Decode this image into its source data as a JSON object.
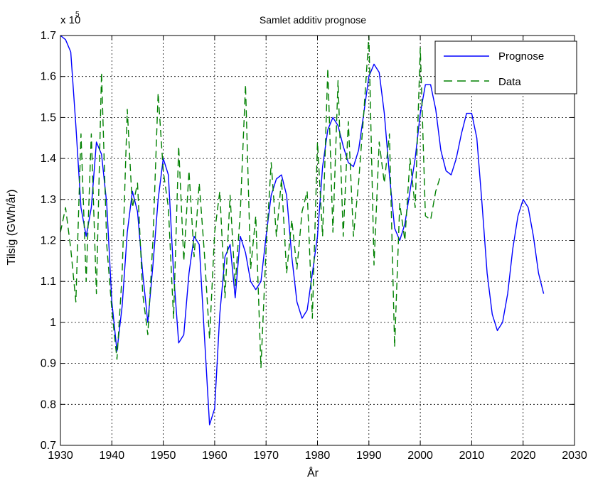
{
  "chart_data": {
    "type": "line",
    "title": "Samlet additiv prognose",
    "xlabel": "År",
    "ylabel": "Tilsig (GWh/år)",
    "y_multiplier": {
      "base": "x 10",
      "exponent": "5"
    },
    "xlim": [
      1930,
      2030
    ],
    "ylim": [
      0.7,
      1.7
    ],
    "xticks": [
      1930,
      1940,
      1950,
      1960,
      1970,
      1980,
      1990,
      2000,
      2010,
      2020,
      2030
    ],
    "yticks": [
      0.7,
      0.8,
      0.9,
      1,
      1.1,
      1.2,
      1.3,
      1.4,
      1.5,
      1.6,
      1.7
    ],
    "xtick_labels": [
      "1930",
      "1940",
      "1950",
      "1960",
      "1970",
      "1980",
      "1990",
      "2000",
      "2010",
      "2020",
      "2030"
    ],
    "ytick_labels": [
      "0.7",
      "0.8",
      "0.9",
      "1",
      "1.1",
      "1.2",
      "1.3",
      "1.4",
      "1.5",
      "1.6",
      "1.7"
    ],
    "grid": true,
    "legend_position": "top-right",
    "series": [
      {
        "name": "Prognose",
        "color": "#0000ff",
        "style": "solid",
        "points": [
          [
            1930,
            1.7
          ],
          [
            1931,
            1.69
          ],
          [
            1932,
            1.66
          ],
          [
            1933,
            1.48
          ],
          [
            1934,
            1.28
          ],
          [
            1935,
            1.21
          ],
          [
            1936,
            1.28
          ],
          [
            1937,
            1.44
          ],
          [
            1938,
            1.41
          ],
          [
            1939,
            1.29
          ],
          [
            1940,
            1.05
          ],
          [
            1941,
            0.93
          ],
          [
            1942,
            1.04
          ],
          [
            1943,
            1.22
          ],
          [
            1944,
            1.32
          ],
          [
            1945,
            1.27
          ],
          [
            1946,
            1.12
          ],
          [
            1947,
            1.0
          ],
          [
            1948,
            1.14
          ],
          [
            1949,
            1.3
          ],
          [
            1950,
            1.4
          ],
          [
            1951,
            1.36
          ],
          [
            1952,
            1.12
          ],
          [
            1953,
            0.95
          ],
          [
            1954,
            0.97
          ],
          [
            1955,
            1.12
          ],
          [
            1956,
            1.21
          ],
          [
            1957,
            1.19
          ],
          [
            1958,
            0.97
          ],
          [
            1959,
            0.75
          ],
          [
            1960,
            0.79
          ],
          [
            1961,
            1.02
          ],
          [
            1962,
            1.16
          ],
          [
            1963,
            1.19
          ],
          [
            1964,
            1.06
          ],
          [
            1965,
            1.21
          ],
          [
            1966,
            1.17
          ],
          [
            1967,
            1.1
          ],
          [
            1968,
            1.08
          ],
          [
            1969,
            1.1
          ],
          [
            1970,
            1.21
          ],
          [
            1971,
            1.31
          ],
          [
            1972,
            1.35
          ],
          [
            1973,
            1.36
          ],
          [
            1974,
            1.31
          ],
          [
            1975,
            1.16
          ],
          [
            1976,
            1.05
          ],
          [
            1977,
            1.01
          ],
          [
            1978,
            1.03
          ],
          [
            1979,
            1.12
          ],
          [
            1980,
            1.21
          ],
          [
            1981,
            1.38
          ],
          [
            1982,
            1.47
          ],
          [
            1983,
            1.5
          ],
          [
            1984,
            1.48
          ],
          [
            1985,
            1.43
          ],
          [
            1986,
            1.39
          ],
          [
            1987,
            1.38
          ],
          [
            1988,
            1.42
          ],
          [
            1989,
            1.51
          ],
          [
            1990,
            1.6
          ],
          [
            1991,
            1.63
          ],
          [
            1992,
            1.61
          ],
          [
            1993,
            1.51
          ],
          [
            1994,
            1.36
          ],
          [
            1995,
            1.23
          ],
          [
            1996,
            1.2
          ],
          [
            1997,
            1.24
          ],
          [
            1998,
            1.32
          ],
          [
            1999,
            1.4
          ],
          [
            2000,
            1.51
          ],
          [
            2001,
            1.58
          ],
          [
            2002,
            1.58
          ],
          [
            2003,
            1.52
          ],
          [
            2004,
            1.42
          ],
          [
            2005,
            1.37
          ],
          [
            2006,
            1.36
          ],
          [
            2007,
            1.4
          ],
          [
            2008,
            1.46
          ],
          [
            2009,
            1.51
          ],
          [
            2010,
            1.51
          ],
          [
            2011,
            1.45
          ],
          [
            2012,
            1.29
          ],
          [
            2013,
            1.12
          ],
          [
            2014,
            1.02
          ],
          [
            2015,
            0.98
          ],
          [
            2016,
            1.0
          ],
          [
            2017,
            1.07
          ],
          [
            2018,
            1.18
          ],
          [
            2019,
            1.26
          ],
          [
            2020,
            1.3
          ],
          [
            2021,
            1.28
          ],
          [
            2022,
            1.21
          ],
          [
            2023,
            1.12
          ],
          [
            2024,
            1.07
          ]
        ]
      },
      {
        "name": "Data",
        "color": "#008000",
        "style": "dashed",
        "points": [
          [
            1930,
            1.22
          ],
          [
            1931,
            1.28
          ],
          [
            1932,
            1.18
          ],
          [
            1933,
            1.05
          ],
          [
            1934,
            1.46
          ],
          [
            1935,
            1.1
          ],
          [
            1936,
            1.46
          ],
          [
            1937,
            1.07
          ],
          [
            1938,
            1.61
          ],
          [
            1939,
            1.19
          ],
          [
            1940,
            1.03
          ],
          [
            1941,
            0.91
          ],
          [
            1942,
            1.12
          ],
          [
            1943,
            1.52
          ],
          [
            1944,
            1.28
          ],
          [
            1945,
            1.34
          ],
          [
            1946,
            1.07
          ],
          [
            1947,
            0.97
          ],
          [
            1948,
            1.2
          ],
          [
            1949,
            1.56
          ],
          [
            1950,
            1.37
          ],
          [
            1951,
            1.28
          ],
          [
            1952,
            1.01
          ],
          [
            1953,
            1.43
          ],
          [
            1954,
            1.15
          ],
          [
            1955,
            1.37
          ],
          [
            1956,
            1.16
          ],
          [
            1957,
            1.34
          ],
          [
            1958,
            1.17
          ],
          [
            1959,
            0.96
          ],
          [
            1960,
            1.22
          ],
          [
            1961,
            1.32
          ],
          [
            1962,
            1.06
          ],
          [
            1963,
            1.31
          ],
          [
            1964,
            1.09
          ],
          [
            1965,
            1.27
          ],
          [
            1966,
            1.58
          ],
          [
            1967,
            1.13
          ],
          [
            1968,
            1.26
          ],
          [
            1969,
            0.89
          ],
          [
            1970,
            1.18
          ],
          [
            1971,
            1.39
          ],
          [
            1972,
            1.21
          ],
          [
            1973,
            1.35
          ],
          [
            1974,
            1.12
          ],
          [
            1975,
            1.25
          ],
          [
            1976,
            1.13
          ],
          [
            1977,
            1.27
          ],
          [
            1978,
            1.32
          ],
          [
            1979,
            1.01
          ],
          [
            1980,
            1.44
          ],
          [
            1981,
            1.21
          ],
          [
            1982,
            1.62
          ],
          [
            1983,
            1.22
          ],
          [
            1984,
            1.59
          ],
          [
            1985,
            1.21
          ],
          [
            1986,
            1.49
          ],
          [
            1987,
            1.21
          ],
          [
            1988,
            1.34
          ],
          [
            1989,
            1.51
          ],
          [
            1990,
            1.7
          ],
          [
            1991,
            1.14
          ],
          [
            1992,
            1.44
          ],
          [
            1993,
            1.34
          ],
          [
            1994,
            1.46
          ],
          [
            1995,
            0.94
          ],
          [
            1996,
            1.29
          ],
          [
            1997,
            1.2
          ],
          [
            1998,
            1.4
          ],
          [
            1999,
            1.28
          ],
          [
            2000,
            1.67
          ],
          [
            2001,
            1.26
          ],
          [
            2002,
            1.25
          ],
          [
            2003,
            1.32
          ],
          [
            2004,
            1.36
          ]
        ]
      }
    ]
  }
}
